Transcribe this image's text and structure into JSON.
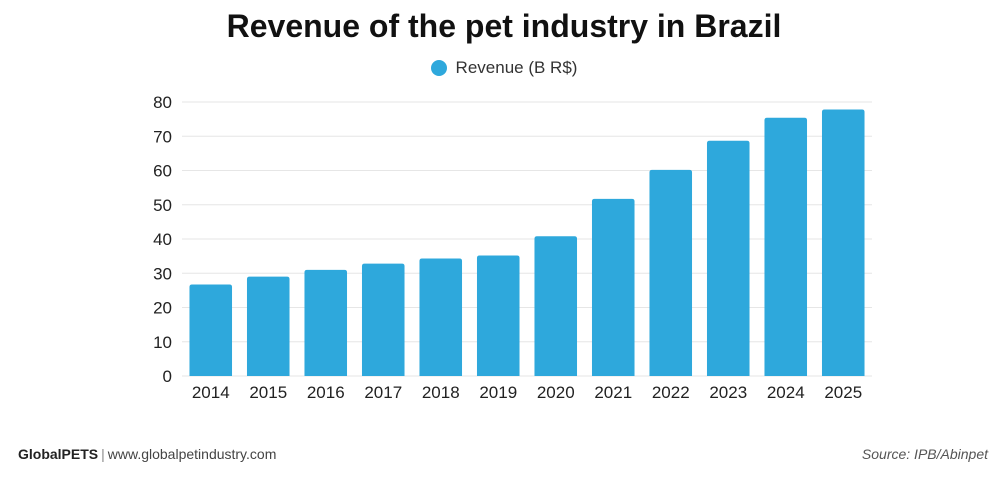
{
  "title": "Revenue of the pet industry in Brazil",
  "footer": {
    "brand": "GlobalPETS",
    "separator": "|",
    "url": "www.globalpetindustry.com",
    "source": "Source: IPB/Abinpet"
  },
  "colors": {
    "bar": "#2ea8dc",
    "grid": "#e6e6e6"
  },
  "chart_data": {
    "type": "bar",
    "title": "Revenue of the pet industry in Brazil",
    "xlabel": "",
    "ylabel": "",
    "categories": [
      "2014",
      "2015",
      "2016",
      "2017",
      "2018",
      "2019",
      "2020",
      "2021",
      "2022",
      "2023",
      "2024",
      "2025"
    ],
    "series": [
      {
        "name": "Revenue (B R$)",
        "values": [
          26.7,
          29.0,
          31.0,
          32.8,
          34.3,
          35.2,
          40.8,
          51.7,
          60.2,
          68.7,
          75.4,
          77.8
        ]
      }
    ],
    "ylim": [
      0,
      80
    ],
    "yticks": [
      0,
      10,
      20,
      30,
      40,
      50,
      60,
      70,
      80
    ],
    "grid": true,
    "legend": "top-center"
  }
}
